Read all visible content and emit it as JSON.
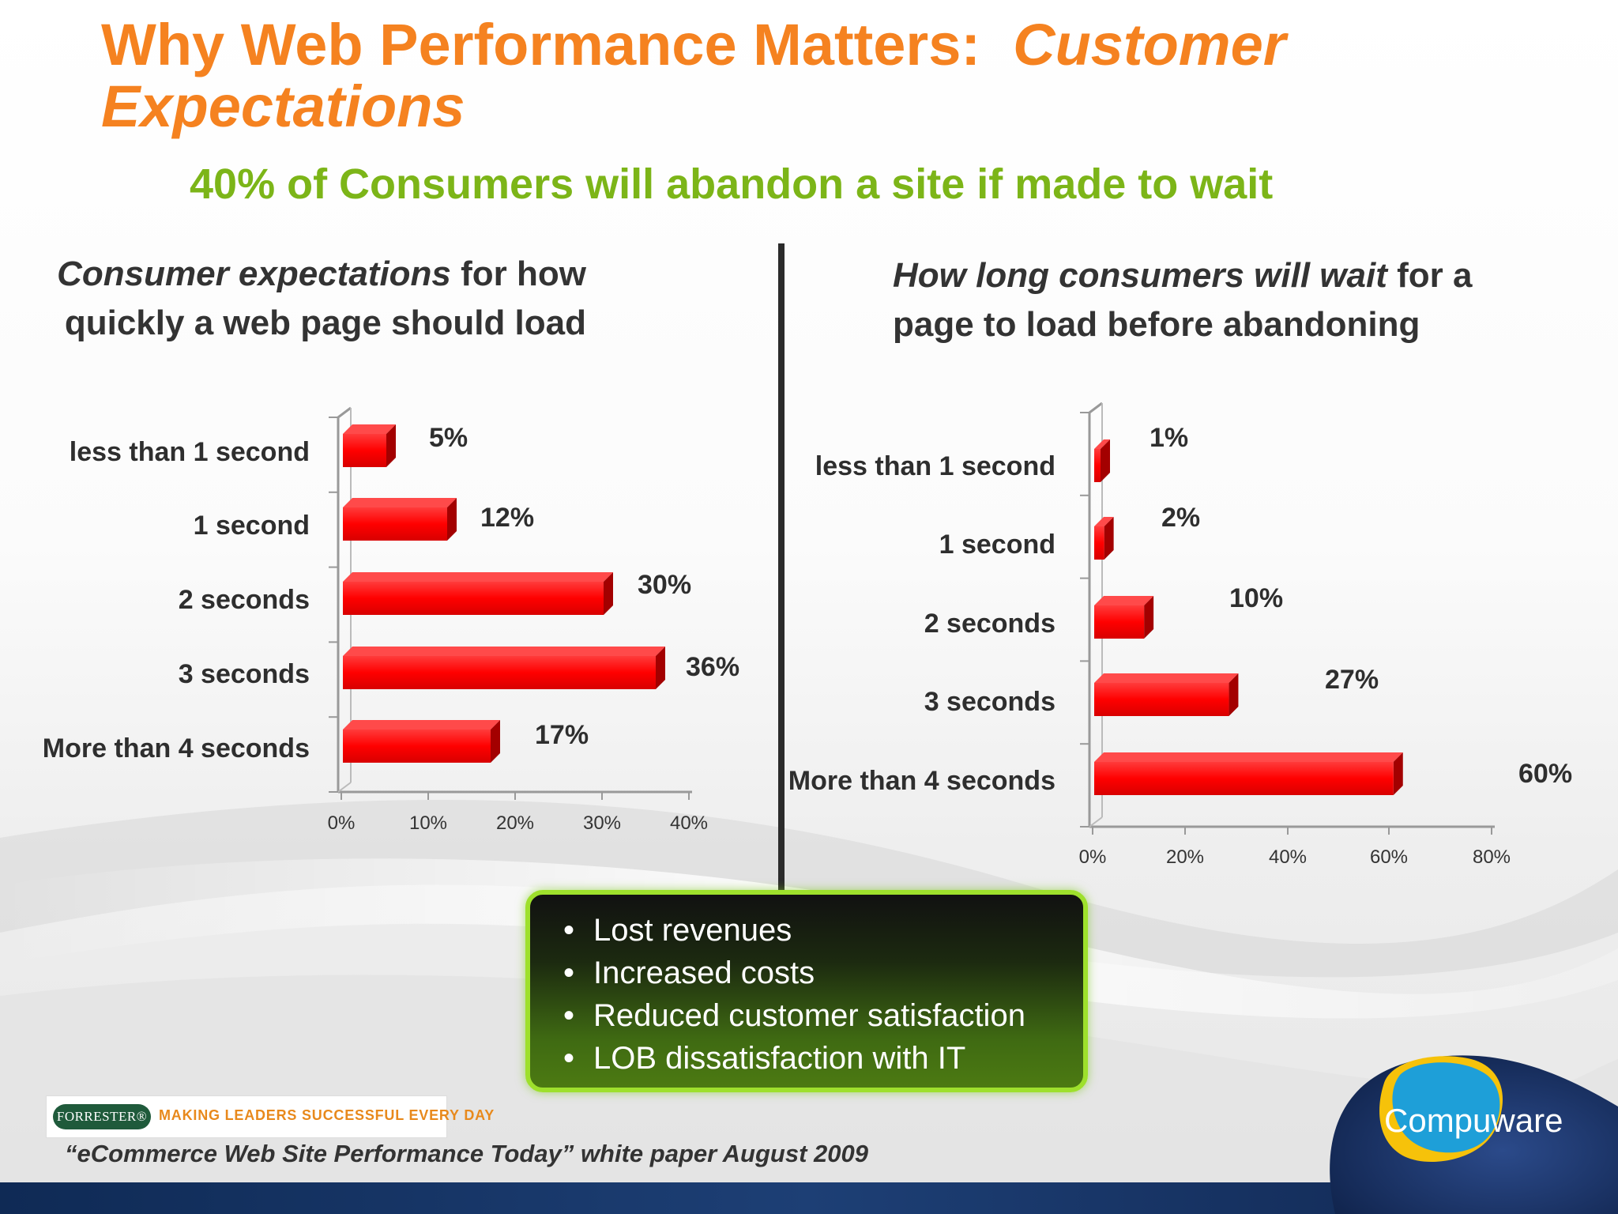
{
  "title": {
    "part1": "Why Web Performance Matters:",
    "part2": "Customer Expectations"
  },
  "subtitle": "40% of Consumers will abandon a site if made to wait",
  "left_heading": {
    "italic": "Consumer expectations",
    "rest": " for how quickly a web page should load"
  },
  "right_heading": {
    "italic": "How long consumers will wait",
    "rest": " for a page to load before abandoning"
  },
  "callout": {
    "items": [
      "Lost revenues",
      "Increased costs",
      "Reduced customer satisfaction",
      "LOB dissatisfaction with IT"
    ]
  },
  "footer": {
    "forrester_logo": "FORRESTER®",
    "forrester_tagline": "MAKING LEADERS SUCCESSFUL EVERY DAY",
    "source": "“eCommerce Web Site Performance Today” white paper August 2009",
    "brand": "Compuware"
  },
  "colors": {
    "title": "#f58220",
    "subtitle": "#7cb518",
    "bar": "#ff0000",
    "callout_border": "#9ee02c"
  },
  "chart_data": [
    {
      "type": "bar",
      "orientation": "horizontal",
      "title": "Consumer expectations for how quickly a web page should load",
      "categories": [
        "less than 1 second",
        "1 second",
        "2 seconds",
        "3 seconds",
        "More than 4 seconds"
      ],
      "values": [
        5,
        12,
        30,
        36,
        17
      ],
      "labels": [
        "5%",
        "12%",
        "30%",
        "36%",
        "17%"
      ],
      "ticks": [
        "0%",
        "10%",
        "20%",
        "30%",
        "40%"
      ],
      "xlim": [
        0,
        40
      ],
      "grid": false
    },
    {
      "type": "bar",
      "orientation": "horizontal",
      "title": "How long consumers will wait for a page to load before abandoning",
      "categories": [
        "less than 1 second",
        "1 second",
        "2 seconds",
        "3 seconds",
        "More than 4 seconds"
      ],
      "values": [
        1,
        2,
        10,
        27,
        60
      ],
      "labels": [
        "1%",
        "2%",
        "10%",
        "27%",
        "60%"
      ],
      "ticks": [
        "0%",
        "20%",
        "40%",
        "60%",
        "80%"
      ],
      "xlim": [
        0,
        80
      ],
      "grid": false
    }
  ]
}
